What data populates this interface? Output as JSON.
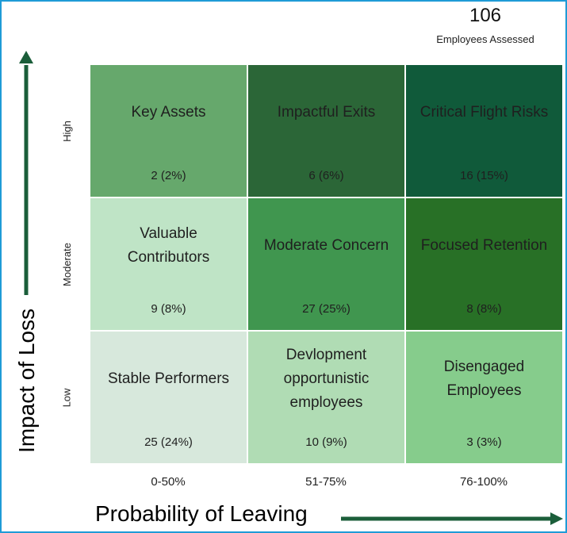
{
  "summary": {
    "total": "106",
    "caption": "Employees Assessed"
  },
  "colors": {
    "border": "#1f9bd6",
    "arrow": "#1b5e3a"
  },
  "chart_data": {
    "type": "heatmap",
    "xlabel": "Probability of Leaving",
    "ylabel": "Impact of Loss",
    "x_categories": [
      "0-50%",
      "51-75%",
      "76-100%"
    ],
    "y_categories": [
      "High",
      "Moderate",
      "Low"
    ],
    "total_employees": 106,
    "cells": [
      {
        "row": 0,
        "col": 0,
        "name": "Key Assets",
        "count": 2,
        "percent": 2,
        "label": "2 (2%)",
        "color": "#66a86c"
      },
      {
        "row": 0,
        "col": 1,
        "name": "Impactful Exits",
        "count": 6,
        "percent": 6,
        "label": "6 (6%)",
        "color": "#2b6637"
      },
      {
        "row": 0,
        "col": 2,
        "name": "Critical Flight Risks",
        "count": 16,
        "percent": 15,
        "label": "16 (15%)",
        "color": "#105a3a"
      },
      {
        "row": 1,
        "col": 0,
        "name": "Valuable\nContributors",
        "count": 9,
        "percent": 8,
        "label": "9 (8%)",
        "color": "#bfe4c6"
      },
      {
        "row": 1,
        "col": 1,
        "name": "Moderate Concern",
        "count": 27,
        "percent": 25,
        "label": "27 (25%)",
        "color": "#40964f"
      },
      {
        "row": 1,
        "col": 2,
        "name": "Focused Retention",
        "count": 8,
        "percent": 8,
        "label": "8 (8%)",
        "color": "#287026"
      },
      {
        "row": 2,
        "col": 0,
        "name": "Stable Performers",
        "count": 25,
        "percent": 24,
        "label": "25 (24%)",
        "color": "#d7e8dc"
      },
      {
        "row": 2,
        "col": 1,
        "name": "Devlopment\nopportunistic\nemployees",
        "count": 10,
        "percent": 9,
        "label": "10 (9%)",
        "color": "#b0dcb4"
      },
      {
        "row": 2,
        "col": 2,
        "name": "Disengaged\nEmployees",
        "count": 3,
        "percent": 3,
        "label": "3 (3%)",
        "color": "#86cc8c"
      }
    ]
  }
}
